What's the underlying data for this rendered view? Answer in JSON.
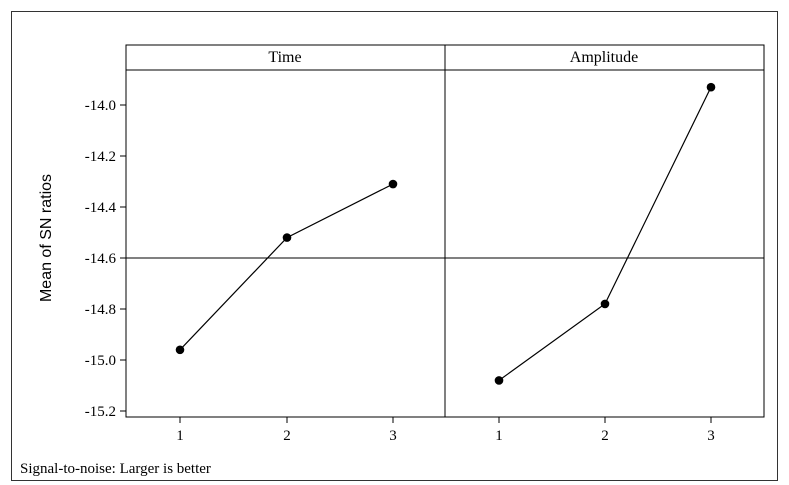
{
  "chart_data": {
    "type": "line",
    "ylabel": "Mean of SN ratios",
    "ylim": [
      -15.22,
      -13.85
    ],
    "yticks": [
      -14.0,
      -14.2,
      -14.4,
      -14.6,
      -14.8,
      -15.0,
      -15.2
    ],
    "ytick_labels": [
      "-14.0",
      "-14.2",
      "-14.4",
      "-14.6",
      "-14.8",
      "-15.0",
      "-15.2"
    ],
    "reference_line": -14.6,
    "panels": [
      {
        "title": "Time",
        "x": [
          "1",
          "2",
          "3"
        ],
        "values": [
          -14.96,
          -14.52,
          -14.31
        ]
      },
      {
        "title": "Amplitude",
        "x": [
          "1",
          "2",
          "3"
        ],
        "values": [
          -15.08,
          -14.78,
          -13.93
        ]
      }
    ],
    "footnote": "Signal-to-noise: Larger is better"
  }
}
